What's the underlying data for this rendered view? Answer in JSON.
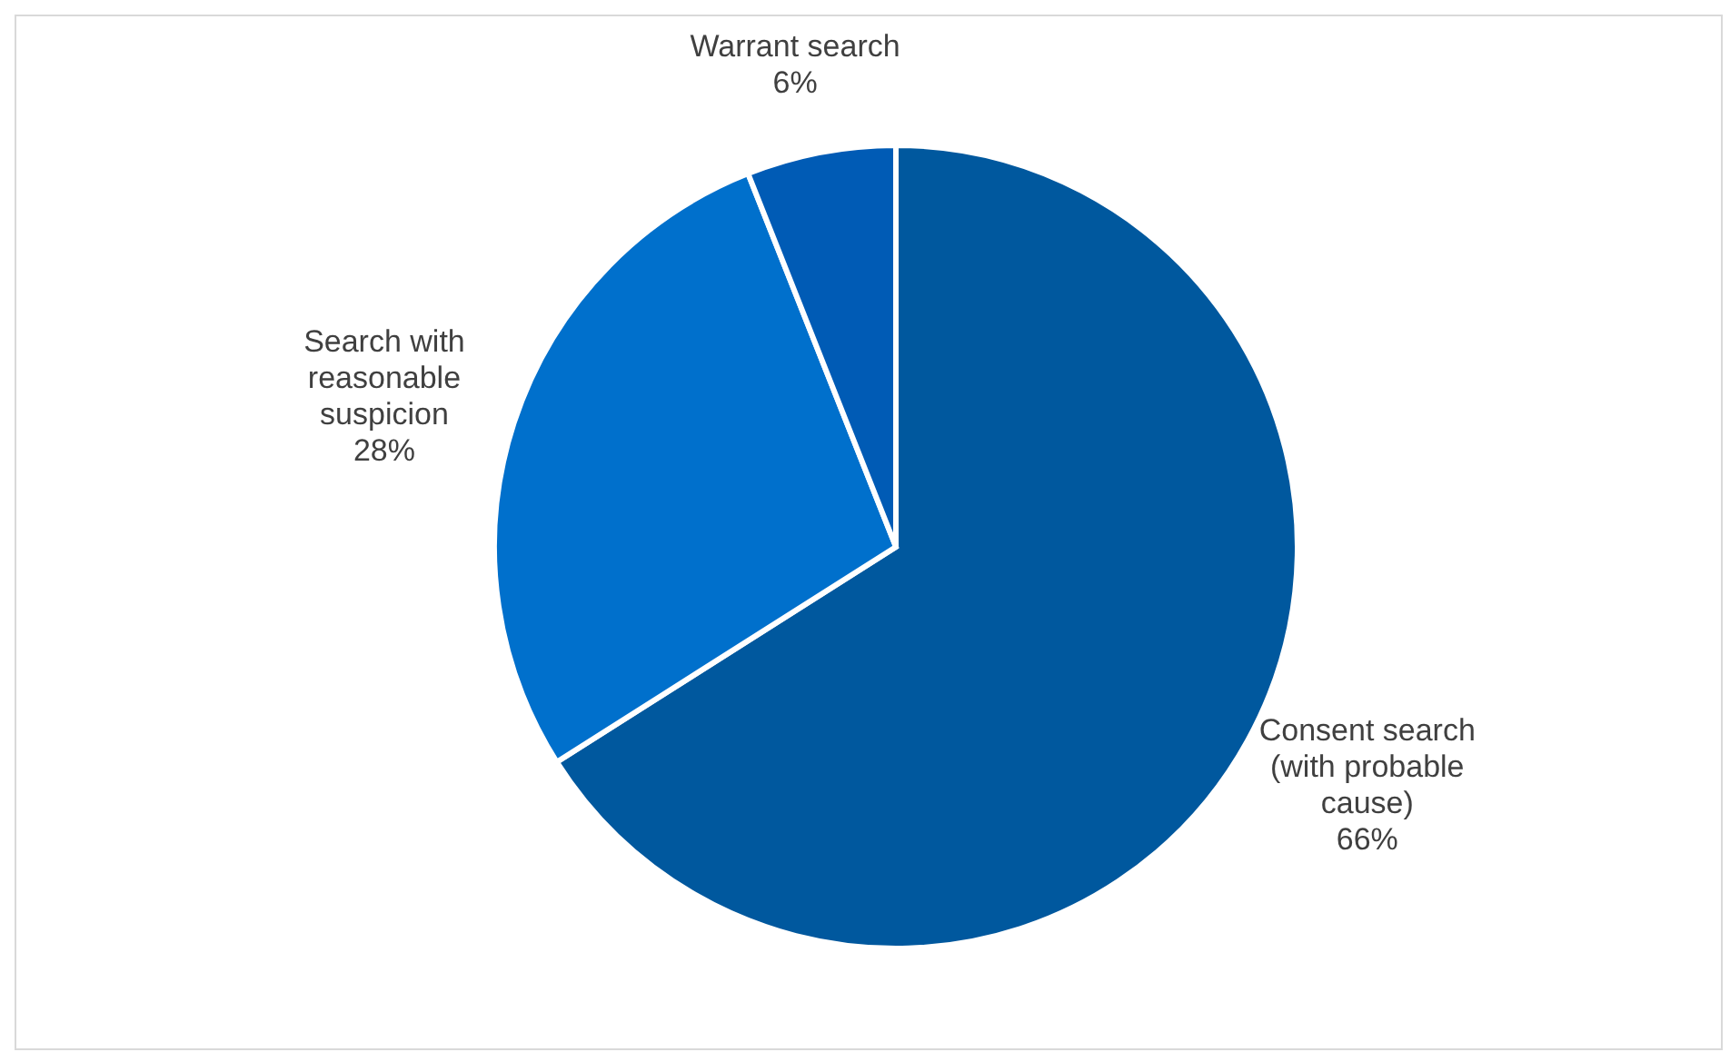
{
  "chart_data": {
    "type": "pie",
    "categories": [
      "Consent search (with probable cause)",
      "Search with reasonable suspicion",
      "Warrant search"
    ],
    "values": [
      66,
      28,
      6
    ],
    "colors": [
      "#00589e",
      "#0070cc",
      "#005bb5"
    ],
    "value_labels": [
      "66%",
      "28%",
      "6%"
    ],
    "legend": false
  }
}
